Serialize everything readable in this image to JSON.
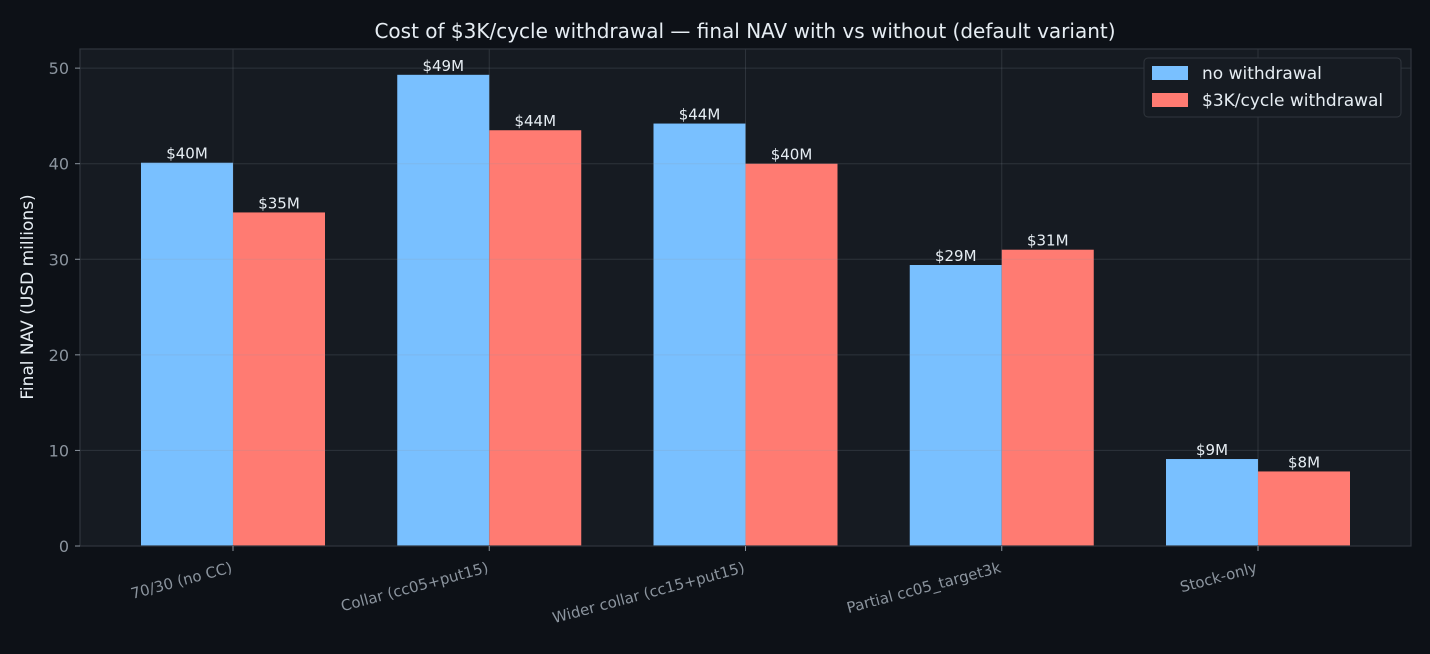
{
  "chart_data": {
    "type": "bar",
    "title": "Cost of $3K/cycle withdrawal — final NAV with vs without (default variant)",
    "xlabel": "",
    "ylabel": "Final NAV (USD millions)",
    "ylim": [
      0,
      52
    ],
    "yticks": [
      0,
      10,
      20,
      30,
      40,
      50
    ],
    "grid": true,
    "legend_position": "top-right",
    "categories": [
      "70/30 (no CC)",
      "Collar (cc05+put15)",
      "Wider collar (cc15+put15)",
      "Partial cc05_target3k",
      "Stock-only"
    ],
    "series": [
      {
        "name": "no withdrawal",
        "color": "#79c0ff",
        "values": [
          40.1,
          49.3,
          44.2,
          29.4,
          9.1
        ],
        "labels": [
          "$40M",
          "$49M",
          "$44M",
          "$29M",
          "$9M"
        ]
      },
      {
        "name": "$3K/cycle withdrawal",
        "color": "#ff7b72",
        "values": [
          34.9,
          43.5,
          40.0,
          31.0,
          7.8
        ],
        "labels": [
          "$35M",
          "$44M",
          "$40M",
          "$31M",
          "$8M"
        ]
      }
    ]
  },
  "colors": {
    "page_background": "#0d1117",
    "plot_background": "#161b22",
    "axis_frame": "#30363d",
    "text": "#e6edf3",
    "tick_text": "#8b949e"
  }
}
